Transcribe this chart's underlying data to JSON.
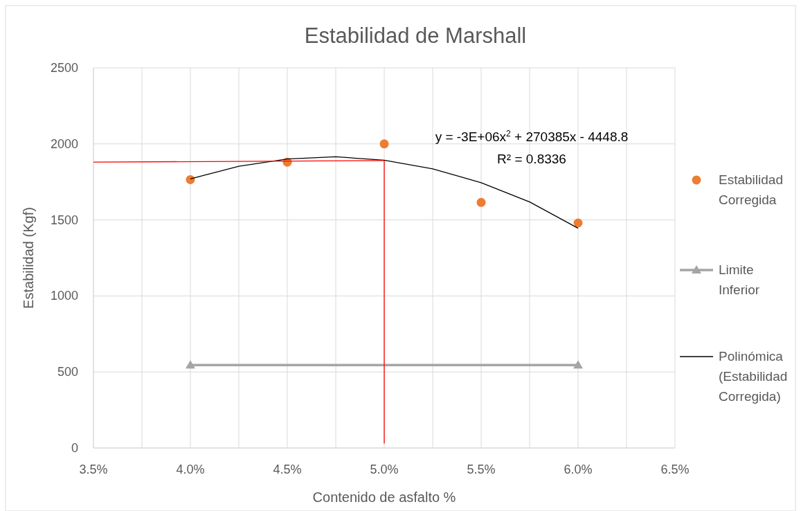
{
  "chart_data": {
    "type": "scatter",
    "title": "Estabilidad de Marshall",
    "xlabel": "Contenido de asfalto %",
    "ylabel": "Estabilidad (Kgf)",
    "xlim": [
      3.5,
      6.5
    ],
    "ylim": [
      0,
      2500
    ],
    "xticks": [
      {
        "value": 3.5,
        "label": "3.5%"
      },
      {
        "value": 3.75,
        "label": null
      },
      {
        "value": 4.0,
        "label": "4.0%"
      },
      {
        "value": 4.25,
        "label": null
      },
      {
        "value": 4.5,
        "label": "4.5%"
      },
      {
        "value": 4.75,
        "label": null
      },
      {
        "value": 5.0,
        "label": "5.0%"
      },
      {
        "value": 5.25,
        "label": null
      },
      {
        "value": 5.5,
        "label": "5.5%"
      },
      {
        "value": 5.75,
        "label": null
      },
      {
        "value": 6.0,
        "label": "6.0%"
      },
      {
        "value": 6.25,
        "label": null
      },
      {
        "value": 6.5,
        "label": "6.5%"
      }
    ],
    "yticks": [
      0,
      500,
      1000,
      1500,
      2000,
      2500
    ],
    "grid": true,
    "legend": "right",
    "annotations": [
      "y = -3E+06x$^{2}$ + 270385x - 4448.8",
      "R² = 0.8336"
    ],
    "series": [
      {
        "name": "Estabilidad Corregida",
        "marker": "circle",
        "color": "#ed7d31",
        "x": [
          4.0,
          4.5,
          5.0,
          5.5,
          6.0
        ],
        "values": [
          1765,
          1880,
          2000,
          1615,
          1480
        ]
      },
      {
        "name": "Limite Inferior",
        "type": "line",
        "marker": "triangle",
        "color": "#a5a5a5",
        "x": [
          4.0,
          6.0
        ],
        "values": [
          545,
          545
        ]
      },
      {
        "name": "Polinómica (Estabilidad Corregida)",
        "type": "line",
        "marker": "none",
        "color": "#000000",
        "x": [
          4.0,
          4.25,
          4.5,
          4.75,
          5.0,
          5.25,
          5.5,
          5.75,
          6.0
        ],
        "values": [
          1770,
          1853,
          1901,
          1915,
          1893,
          1836,
          1745,
          1618,
          1445
        ]
      },
      {
        "type": "line",
        "marker": "none",
        "color": "#ff0000",
        "x": [
          3.5,
          5.0
        ],
        "values": [
          1880,
          1890
        ]
      },
      {
        "type": "line",
        "marker": "none",
        "color": "#ff0000",
        "x": [
          5.0,
          5.0
        ],
        "values": [
          1890,
          30
        ]
      }
    ]
  }
}
